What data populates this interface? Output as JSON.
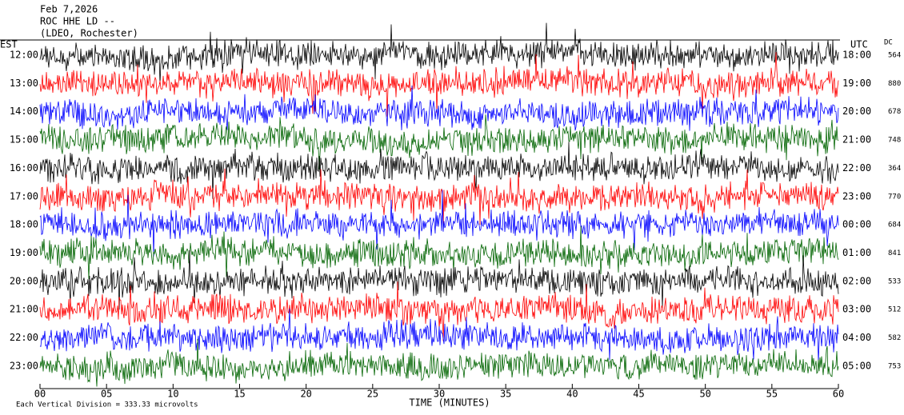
{
  "header": {
    "date": "Feb 7,2026",
    "station": "ROC HHE LD --",
    "network": "(LDEO, Rochester)"
  },
  "chart_data": {
    "type": "helicorder",
    "left_axis_label": "EST",
    "right_axis_label": "UTC",
    "dc_label": "DC",
    "xlabel": "TIME (MINUTES)",
    "scale_note": "Each Vertical Division =  333.33 microvolts",
    "xlim": [
      0,
      60
    ],
    "xticks": [
      {
        "value": 0,
        "label": "00"
      },
      {
        "value": 5,
        "label": "05"
      },
      10,
      15,
      20,
      25,
      30,
      35,
      40,
      45,
      50,
      55,
      60
    ],
    "rows": [
      {
        "est": "12:00",
        "utc": "18:00",
        "dc": 564,
        "color": "#000000"
      },
      {
        "est": "13:00",
        "utc": "19:00",
        "dc": 880,
        "color": "#ff0000"
      },
      {
        "est": "14:00",
        "utc": "20:00",
        "dc": 678,
        "color": "#0000ff"
      },
      {
        "est": "15:00",
        "utc": "21:00",
        "dc": 748,
        "color": "#006400"
      },
      {
        "est": "16:00",
        "utc": "22:00",
        "dc": 364,
        "color": "#000000"
      },
      {
        "est": "17:00",
        "utc": "23:00",
        "dc": 770,
        "color": "#ff0000"
      },
      {
        "est": "18:00",
        "utc": "00:00",
        "dc": 684,
        "color": "#0000ff"
      },
      {
        "est": "19:00",
        "utc": "01:00",
        "dc": 841,
        "color": "#006400"
      },
      {
        "est": "20:00",
        "utc": "02:00",
        "dc": 533,
        "color": "#000000"
      },
      {
        "est": "21:00",
        "utc": "03:00",
        "dc": 512,
        "color": "#ff0000"
      },
      {
        "est": "22:00",
        "utc": "04:00",
        "dc": 582,
        "color": "#0000ff"
      },
      {
        "est": "23:00",
        "utc": "05:00",
        "dc": 753,
        "color": "#006400"
      }
    ]
  }
}
